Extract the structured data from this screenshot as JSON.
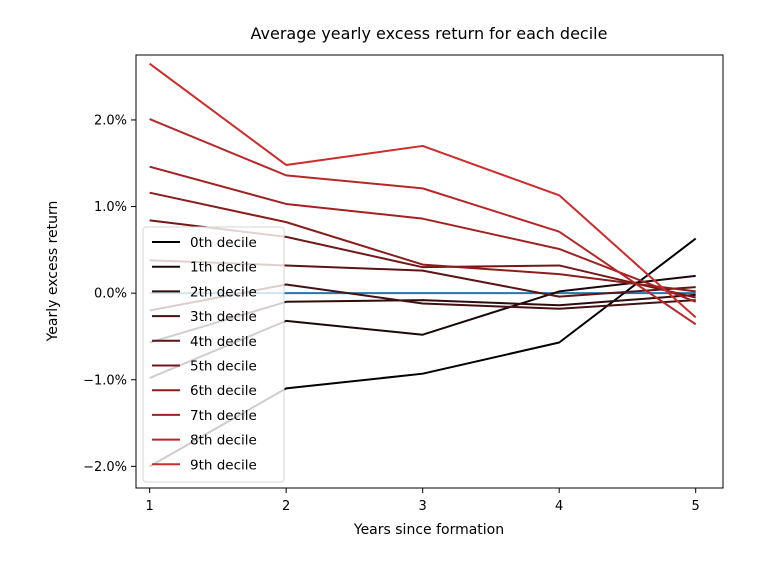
{
  "chart_data": {
    "type": "line",
    "title": "Average yearly excess return for each decile",
    "xlabel": "Years since formation",
    "ylabel": "Yearly excess return",
    "x": [
      1,
      2,
      3,
      4,
      5
    ],
    "x_ticks": [
      1,
      2,
      3,
      4,
      5
    ],
    "x_tick_labels": [
      "1",
      "2",
      "3",
      "4",
      "5"
    ],
    "xlim": [
      0.9,
      5.2
    ],
    "ylim": [
      -2.25,
      2.75
    ],
    "y_ticks": [
      -2.0,
      -1.0,
      0.0,
      1.0,
      2.0
    ],
    "y_tick_labels": [
      "−2.0%",
      "−1.0%",
      "0.0%",
      "1.0%",
      "2.0%"
    ],
    "grid": false,
    "legend_position": "lower-left",
    "reference_line": {
      "y": 0.0,
      "color": "#1f77b4"
    },
    "series": [
      {
        "name": "0th decile",
        "color": "#000000",
        "values": [
          -2.0,
          -1.1,
          -0.93,
          -0.57,
          0.63
        ]
      },
      {
        "name": "1th decile",
        "color": "#1a0808",
        "values": [
          -0.98,
          -0.32,
          -0.48,
          0.02,
          0.2
        ]
      },
      {
        "name": "2th decile",
        "color": "#2f0c0c",
        "values": [
          -0.57,
          -0.1,
          -0.08,
          -0.14,
          -0.02
        ]
      },
      {
        "name": "3th decile",
        "color": "#451010",
        "values": [
          -0.2,
          0.1,
          -0.12,
          -0.18,
          -0.08
        ]
      },
      {
        "name": "4th decile",
        "color": "#5c1414",
        "values": [
          0.38,
          0.32,
          0.26,
          -0.04,
          0.07
        ]
      },
      {
        "name": "5th decile",
        "color": "#731818",
        "values": [
          0.84,
          0.65,
          0.3,
          0.32,
          -0.05
        ]
      },
      {
        "name": "6th decile",
        "color": "#8b1d1d",
        "values": [
          1.16,
          0.82,
          0.33,
          0.22,
          0.02
        ]
      },
      {
        "name": "7th decile",
        "color": "#a22222",
        "values": [
          1.46,
          1.03,
          0.86,
          0.51,
          -0.1
        ]
      },
      {
        "name": "8th decile",
        "color": "#b82727",
        "values": [
          2.01,
          1.36,
          1.21,
          0.71,
          -0.36
        ]
      },
      {
        "name": "9th decile",
        "color": "#cf2b2b",
        "values": [
          2.65,
          1.48,
          1.7,
          1.13,
          -0.28
        ]
      }
    ]
  }
}
